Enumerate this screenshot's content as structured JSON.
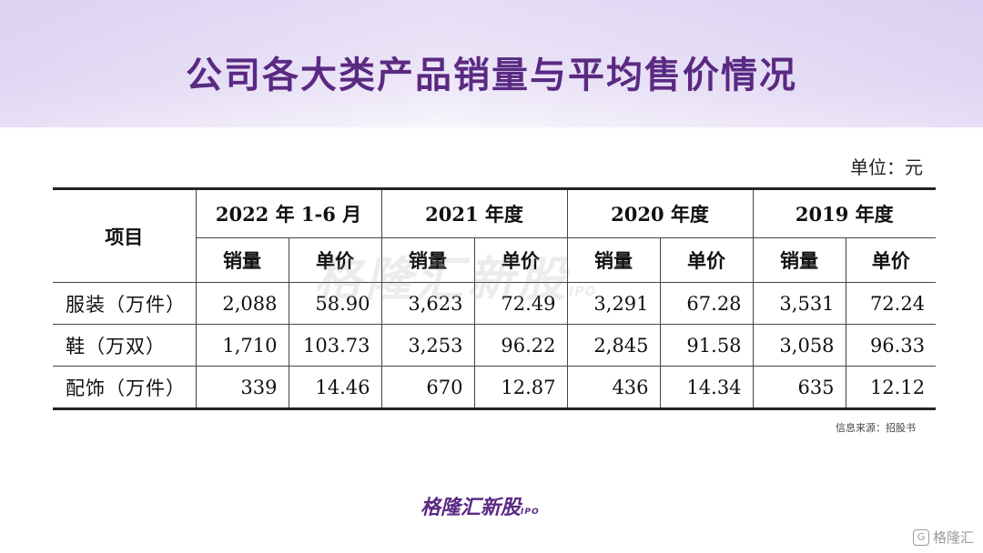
{
  "title": "公司各大类产品销量与平均售价情况",
  "unit": "单位：元",
  "table": {
    "row_header": "项目",
    "periods": [
      "2022 年 1-6 月",
      "2021 年度",
      "2020 年度",
      "2019 年度"
    ],
    "sub_headers": [
      "销量",
      "单价"
    ],
    "rows": [
      {
        "label": "服装（万件）",
        "values": [
          "2,088",
          "58.90",
          "3,623",
          "72.49",
          "3,291",
          "67.28",
          "3,531",
          "72.24"
        ]
      },
      {
        "label": "鞋（万双）",
        "values": [
          "1,710",
          "103.73",
          "3,253",
          "96.22",
          "2,845",
          "91.58",
          "3,058",
          "96.33"
        ]
      },
      {
        "label": "配饰（万件）",
        "values": [
          "339",
          "14.46",
          "670",
          "12.87",
          "436",
          "14.34",
          "635",
          "12.12"
        ]
      }
    ]
  },
  "watermark": {
    "text": "格隆汇新股",
    "suffix": "IPO"
  },
  "source": "信息来源：招股书",
  "brand": {
    "text": "格隆汇新股",
    "suffix": "IPO"
  },
  "corner_logo": {
    "icon": "g-logo-icon",
    "text": "格隆汇"
  }
}
